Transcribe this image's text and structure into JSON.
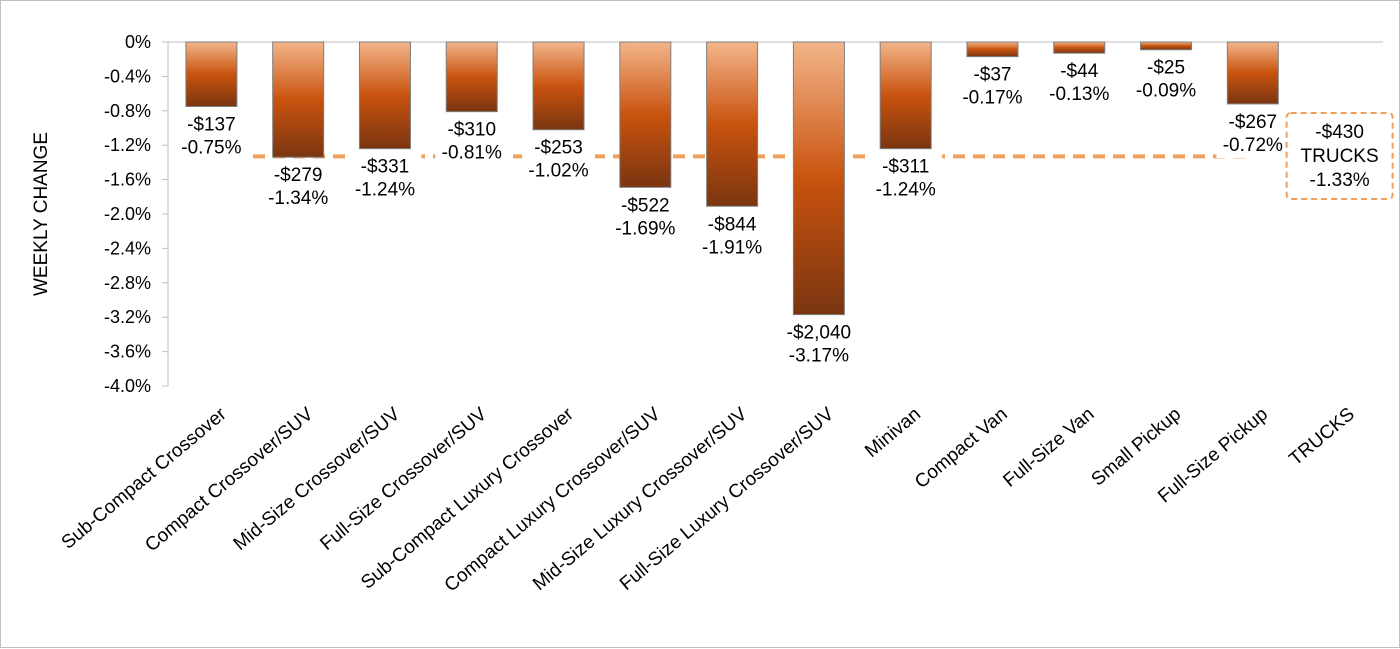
{
  "chart_data": {
    "type": "bar",
    "ylabel": "WEEKLY CHANGE",
    "xlabel": "",
    "ylim": [
      -4.0,
      0
    ],
    "yticks": [
      "0%",
      "-0.4%",
      "-0.8%",
      "-1.2%",
      "-1.6%",
      "-2.0%",
      "-2.4%",
      "-2.8%",
      "-3.2%",
      "-3.6%",
      "-4.0%"
    ],
    "grid": false,
    "categories": [
      "Sub-Compact Crossover",
      "Compact Crossover/SUV",
      "Mid-Size Crossover/SUV",
      "Full-Size Crossover/SUV",
      "Sub-Compact Luxury Crossover",
      "Compact Luxury Crossover/SUV",
      "Mid-Size Luxury Crossover/SUV",
      "Full-Size Luxury Crossover/SUV",
      "Minivan",
      "Compact Van",
      "Full-Size Van",
      "Small Pickup",
      "Full-Size Pickup",
      "TRUCKS"
    ],
    "values": [
      -0.75,
      -1.34,
      -1.24,
      -0.81,
      -1.02,
      -1.69,
      -1.91,
      -3.17,
      -1.24,
      -0.17,
      -0.13,
      -0.09,
      -0.72,
      null
    ],
    "dollar_labels": [
      "-$137",
      "-$279",
      "-$331",
      "-$310",
      "-$253",
      "-$522",
      "-$844",
      "-$2,040",
      "-$311",
      "-$37",
      "-$44",
      "-$25",
      "-$267"
    ],
    "percent_labels": [
      "-0.75%",
      "-1.34%",
      "-1.24%",
      "-0.81%",
      "-1.02%",
      "-1.69%",
      "-1.91%",
      "-3.17%",
      "-1.24%",
      "-0.17%",
      "-0.13%",
      "-0.09%",
      "-0.72%"
    ],
    "reference_line": {
      "value": -1.33,
      "label_lines": [
        "-$430",
        "TRUCKS",
        "-1.33%"
      ]
    },
    "colors": {
      "bar_top": "#f3b58a",
      "bar_mid": "#c9530f",
      "bar_bottom": "#7a3510",
      "bar_edge": "#7f7f7f",
      "reference": "#f0a05a"
    }
  }
}
